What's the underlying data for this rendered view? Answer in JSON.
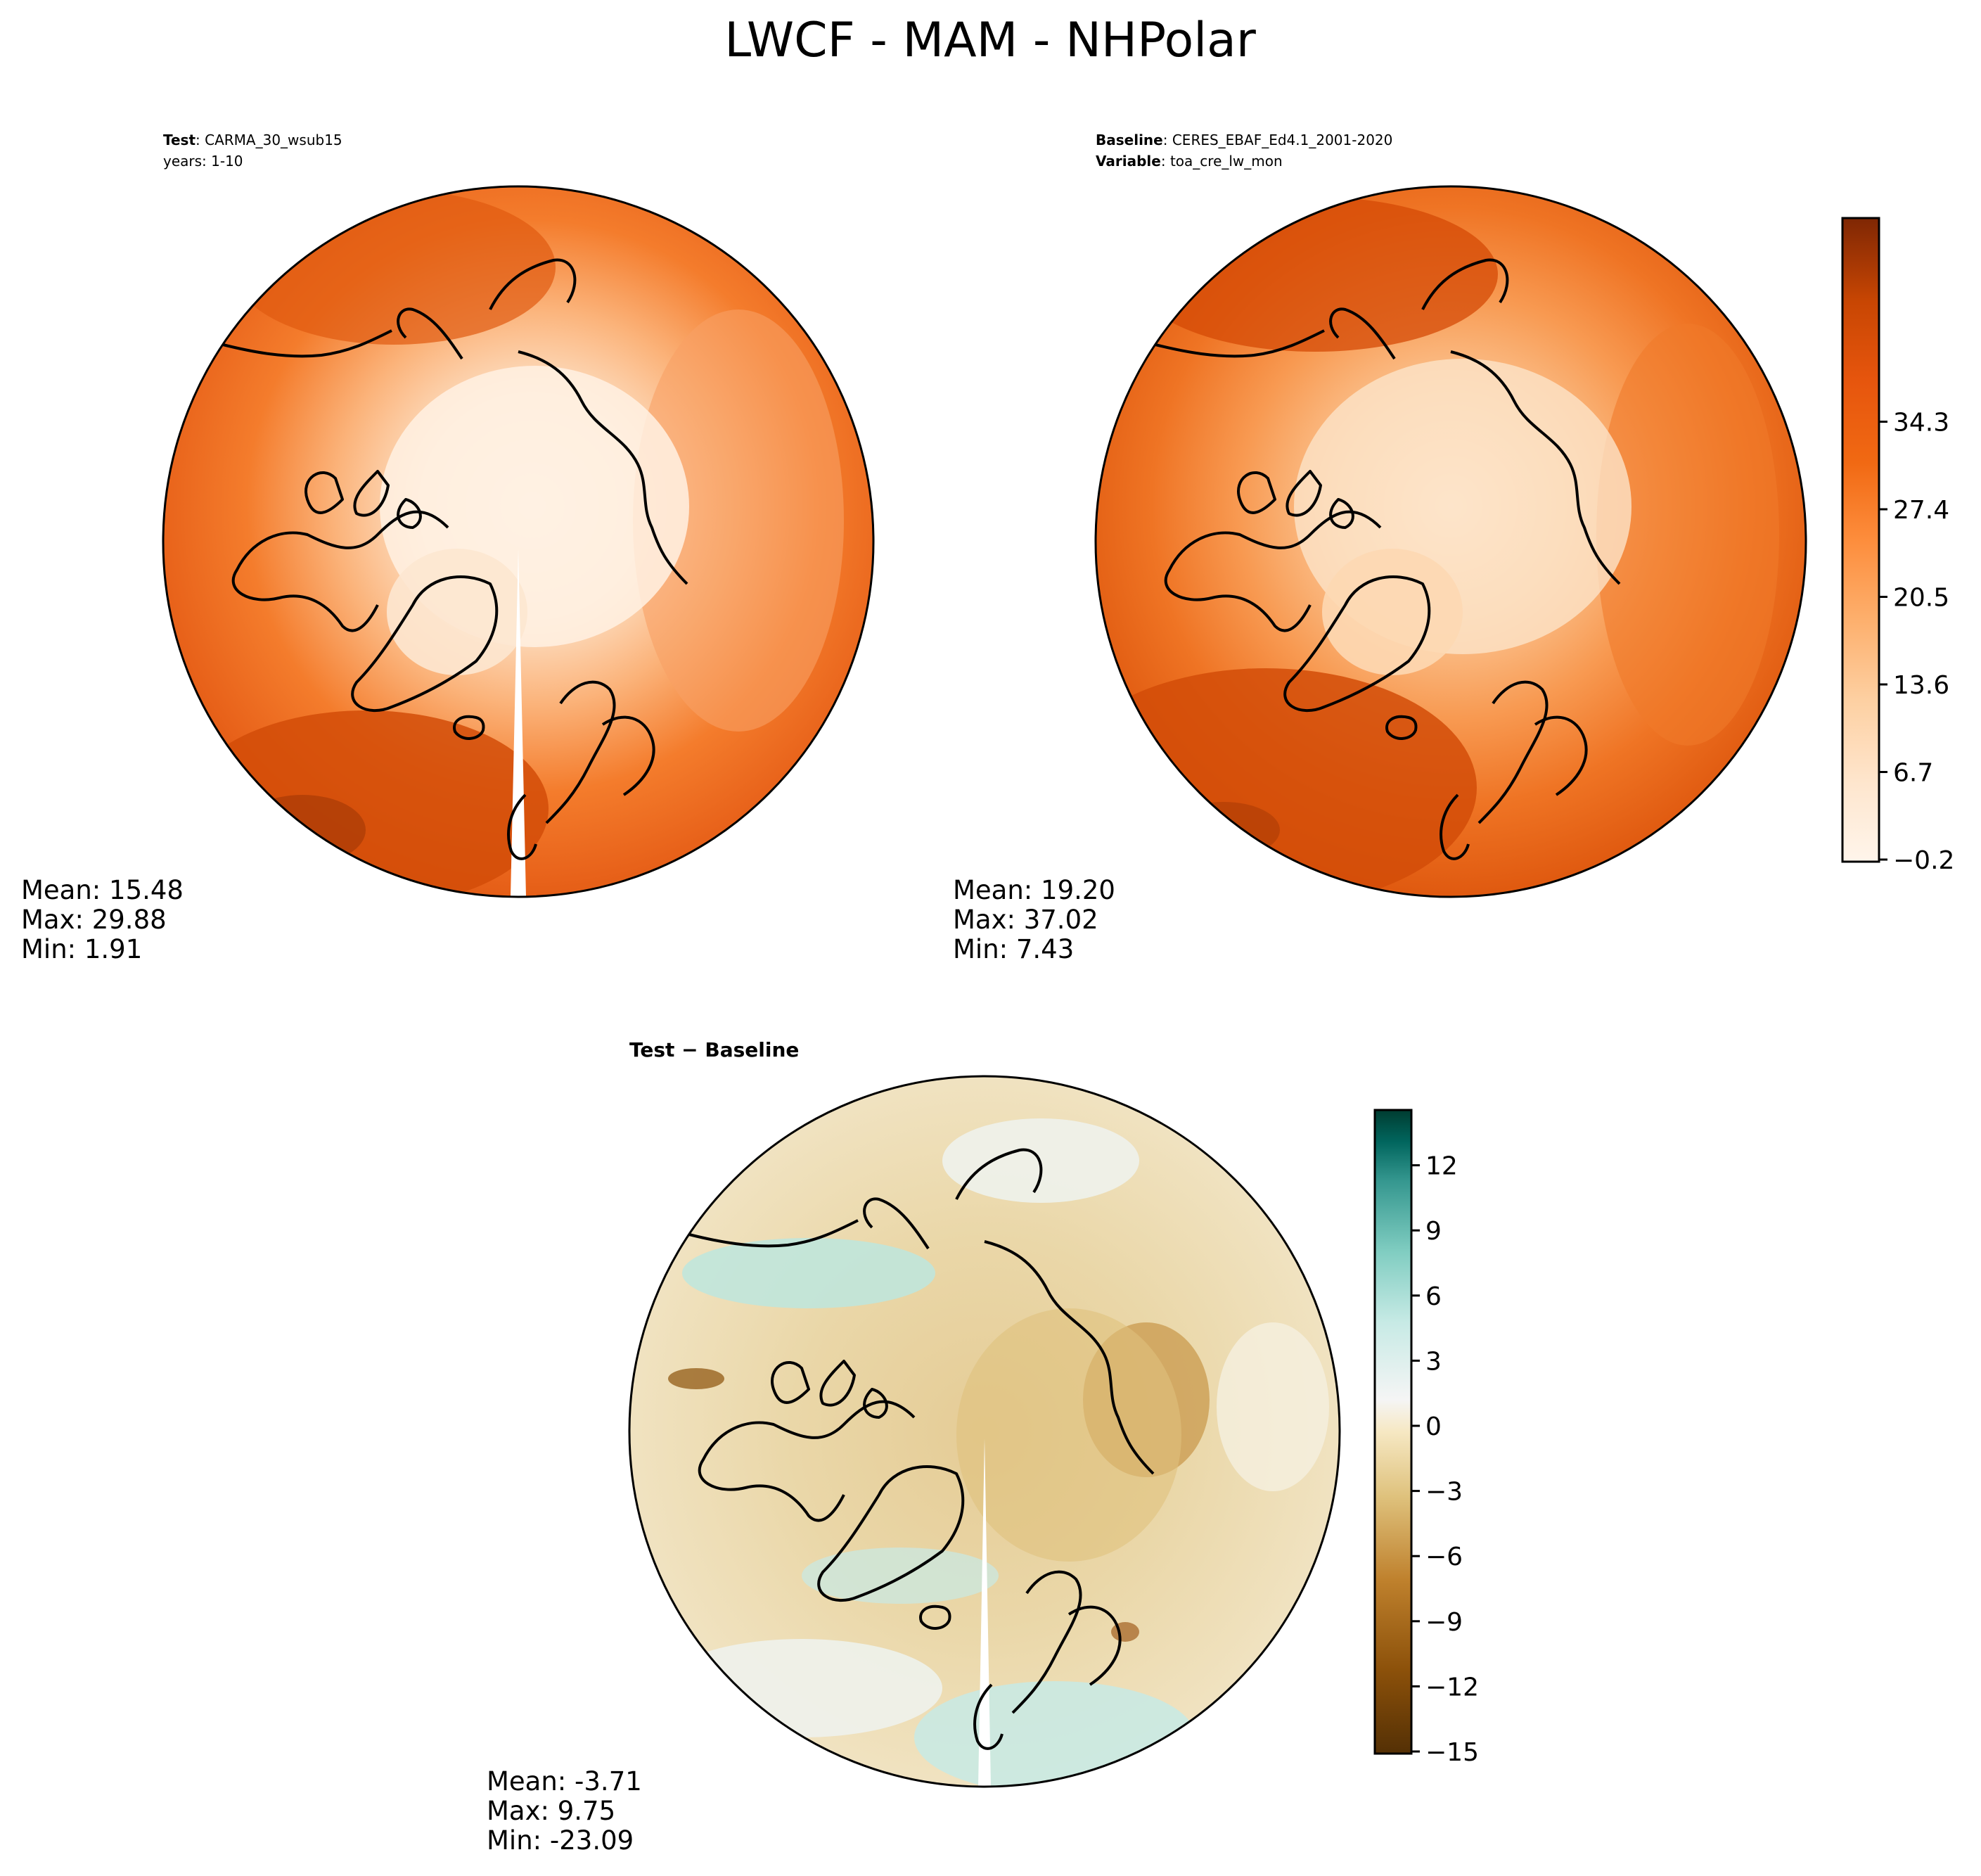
{
  "title": "LWCF - MAM - NHPolar",
  "panels": {
    "test": {
      "label_bold": "Test",
      "label_value": "CARMA_30_wsub15",
      "line2": "years: 1-10",
      "stats": {
        "mean": "Mean: 15.48",
        "max": "Max: 29.88",
        "min": "Min:  1.91"
      }
    },
    "baseline": {
      "label_bold": "Baseline",
      "label_value": "CERES_EBAF_Ed4.1_2001-2020",
      "line2_bold": "Variable",
      "line2_value": "toa_cre_lw_mon",
      "stats": {
        "mean": "Mean: 19.20",
        "max": "Max: 37.02",
        "min": "Min:  7.43"
      }
    },
    "diff": {
      "label": "Test − Baseline",
      "stats": {
        "mean": "Mean: -3.71",
        "max": "Max:  9.75",
        "min": "Min: -23.09"
      }
    }
  },
  "colorbars": {
    "main": {
      "ticks": [
        "−0.2",
        "6.7",
        "13.6",
        "20.5",
        "27.4",
        "34.3"
      ],
      "colors": [
        "#fff5eb",
        "#fee6ce",
        "#fdd0a2",
        "#fdae6b",
        "#fd8d3c",
        "#f16913",
        "#e6550d",
        "#d94801",
        "#b63c02",
        "#8c2d04"
      ]
    },
    "diff": {
      "ticks": [
        "−15",
        "−12",
        "−9",
        "−6",
        "−3",
        "0",
        "3",
        "6",
        "9",
        "12"
      ],
      "colors": [
        "#543005",
        "#8c510a",
        "#bf812d",
        "#dfc27d",
        "#f6e8c3",
        "#f5f5f5",
        "#c7eae5",
        "#80cdc1",
        "#35978f",
        "#01665e",
        "#003c30"
      ]
    }
  },
  "map_colors": {
    "ocean_main": "#f47c2c",
    "ocean_warm": "#e25d10",
    "ocean_dark": "#b93c04",
    "arctic_light": "#fde2c8",
    "arctic_pale": "#fff1e3",
    "diff_base": "#ead7a8",
    "diff_dark": "#c99a4e",
    "diff_teal": "#bde6de",
    "diff_white": "#f4f1e7"
  }
}
